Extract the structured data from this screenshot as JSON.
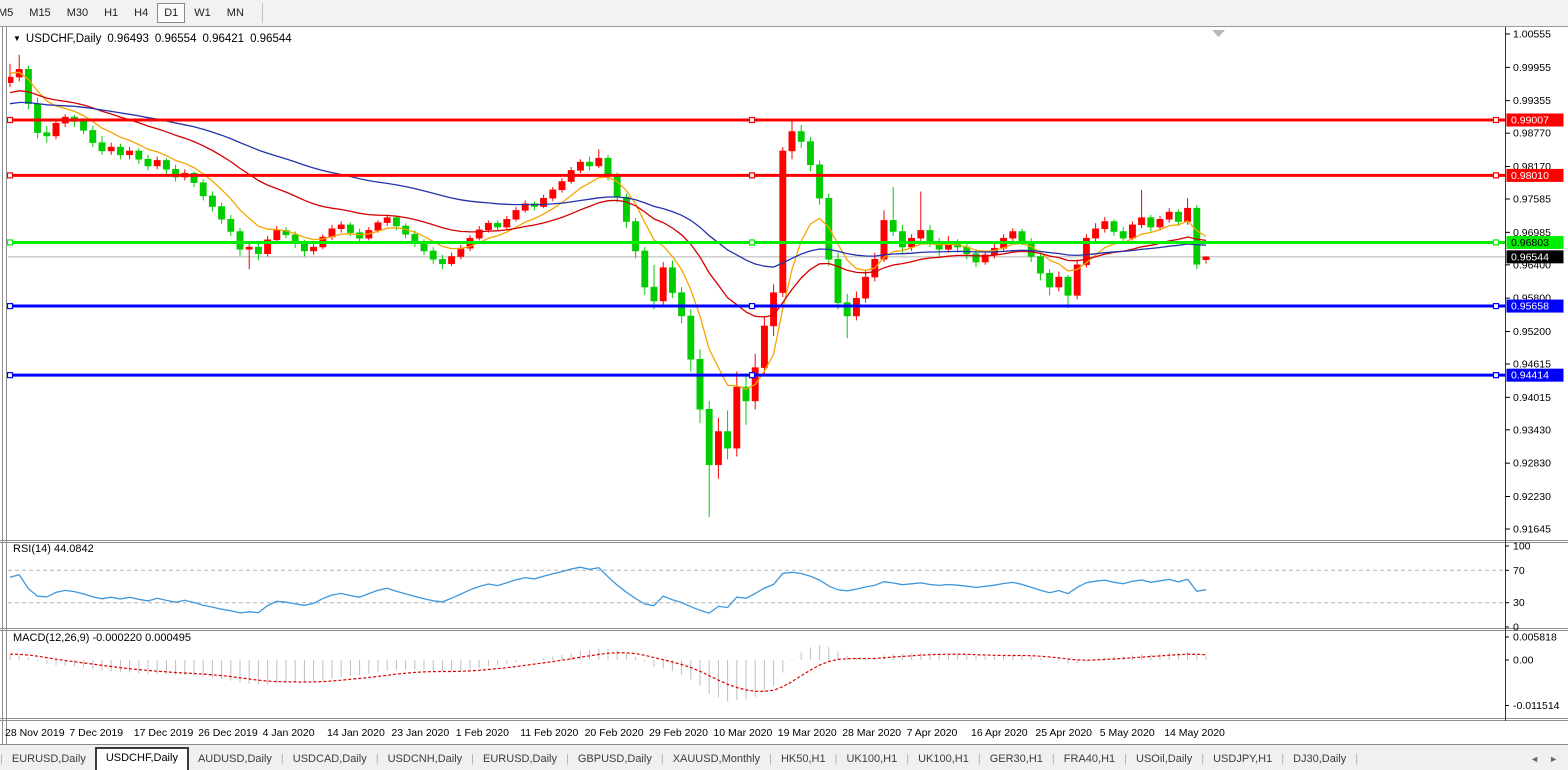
{
  "toolbar": {
    "timeframes": [
      "M5",
      "M15",
      "M30",
      "H1",
      "H4",
      "D1",
      "W1",
      "MN"
    ],
    "active": "D1"
  },
  "chart_header": {
    "dropdown_icon": "▼",
    "symbol": "USDCHF,Daily",
    "open": "0.96493",
    "high": "0.96554",
    "low": "0.96421",
    "close": "0.96544"
  },
  "price_axis": {
    "ticks": [
      "1.00555",
      "0.99955",
      "0.99355",
      "0.98770",
      "0.98170",
      "0.97585",
      "0.96985",
      "0.96400",
      "0.95800",
      "0.95200",
      "0.94615",
      "0.94015",
      "0.93430",
      "0.92830",
      "0.92230",
      "0.91645"
    ]
  },
  "hlines": [
    {
      "price": 0.99007,
      "label": "0.99007",
      "color": "#ff0000",
      "text_color": "#ffffff"
    },
    {
      "price": 0.9801,
      "label": "0.98010",
      "color": "#ff0000",
      "text_color": "#ffffff"
    },
    {
      "price": 0.96803,
      "label": "0.96803",
      "color": "#00ee00",
      "text_color": "#000000"
    },
    {
      "price": 0.95658,
      "label": "0.95658",
      "color": "#0000ff",
      "text_color": "#ffffff"
    },
    {
      "price": 0.94414,
      "label": "0.94414",
      "color": "#0000ff",
      "text_color": "#ffffff"
    }
  ],
  "current_price": {
    "price": 0.96544,
    "label": "0.96544",
    "box_color": "#000000",
    "text_color": "#ffffff",
    "line_color": "#c8c8c8"
  },
  "shift_marker_icon": "triangle-down",
  "chart_data": {
    "type": "candlestick",
    "symbol": "USDCHF",
    "timeframe": "Daily",
    "up_color": "#ff0000",
    "down_color": "#00cc00",
    "date_label_every": 7,
    "date_labels": [
      "28 Nov 2019",
      "7 Dec 2019",
      "17 Dec 2019",
      "26 Dec 2019",
      "4 Jan 2020",
      "14 Jan 2020",
      "23 Jan 2020",
      "1 Feb 2020",
      "11 Feb 2020",
      "20 Feb 2020",
      "29 Feb 2020",
      "10 Mar 2020",
      "19 Mar 2020",
      "28 Mar 2020",
      "7 Apr 2020",
      "16 Apr 2020",
      "25 Apr 2020",
      "5 May 2020",
      "14 May 2020"
    ],
    "candles": [
      [
        0.9968,
        1.0002,
        0.996,
        0.9978
      ],
      [
        0.9978,
        1.0018,
        0.997,
        0.9992
      ],
      [
        0.9992,
        0.9998,
        0.992,
        0.993
      ],
      [
        0.993,
        0.9941,
        0.9868,
        0.9878
      ],
      [
        0.9878,
        0.989,
        0.986,
        0.9872
      ],
      [
        0.9872,
        0.99,
        0.9866,
        0.9895
      ],
      [
        0.9895,
        0.9911,
        0.9888,
        0.9906
      ],
      [
        0.9906,
        0.991,
        0.9888,
        0.9898
      ],
      [
        0.9898,
        0.9905,
        0.9875,
        0.9882
      ],
      [
        0.9882,
        0.989,
        0.9852,
        0.986
      ],
      [
        0.986,
        0.9872,
        0.9838,
        0.9845
      ],
      [
        0.9845,
        0.986,
        0.9838,
        0.9852
      ],
      [
        0.9852,
        0.9858,
        0.983,
        0.9838
      ],
      [
        0.9838,
        0.9852,
        0.983,
        0.9845
      ],
      [
        0.9845,
        0.985,
        0.9822,
        0.983
      ],
      [
        0.983,
        0.9838,
        0.981,
        0.9818
      ],
      [
        0.9818,
        0.9835,
        0.9812,
        0.9828
      ],
      [
        0.9828,
        0.9832,
        0.9804,
        0.9812
      ],
      [
        0.9812,
        0.982,
        0.979,
        0.9798
      ],
      [
        0.9798,
        0.9812,
        0.9792,
        0.9805
      ],
      [
        0.9805,
        0.9808,
        0.978,
        0.9788
      ],
      [
        0.9788,
        0.9794,
        0.9756,
        0.9764
      ],
      [
        0.9764,
        0.9772,
        0.9736,
        0.9745
      ],
      [
        0.9745,
        0.9752,
        0.9714,
        0.9722
      ],
      [
        0.9722,
        0.973,
        0.9692,
        0.97
      ],
      [
        0.97,
        0.9706,
        0.9655,
        0.9668
      ],
      [
        0.9668,
        0.9682,
        0.9632,
        0.9672
      ],
      [
        0.9672,
        0.968,
        0.9648,
        0.966
      ],
      [
        0.966,
        0.9692,
        0.9655,
        0.9685
      ],
      [
        0.9685,
        0.971,
        0.968,
        0.9702
      ],
      [
        0.9702,
        0.9708,
        0.9688,
        0.9694
      ],
      [
        0.9694,
        0.97,
        0.967,
        0.9678
      ],
      [
        0.9678,
        0.9685,
        0.9655,
        0.9665
      ],
      [
        0.9665,
        0.968,
        0.9658,
        0.9672
      ],
      [
        0.9672,
        0.9695,
        0.9668,
        0.969
      ],
      [
        0.969,
        0.9712,
        0.9685,
        0.9705
      ],
      [
        0.9705,
        0.9718,
        0.9698,
        0.9712
      ],
      [
        0.9712,
        0.9716,
        0.9692,
        0.9698
      ],
      [
        0.9698,
        0.9705,
        0.968,
        0.9688
      ],
      [
        0.9688,
        0.9708,
        0.9684,
        0.9702
      ],
      [
        0.9702,
        0.972,
        0.9698,
        0.9716
      ],
      [
        0.9716,
        0.973,
        0.971,
        0.9725
      ],
      [
        0.9725,
        0.9728,
        0.9702,
        0.971
      ],
      [
        0.971,
        0.9715,
        0.9688,
        0.9695
      ],
      [
        0.9695,
        0.9702,
        0.9672,
        0.968
      ],
      [
        0.968,
        0.9686,
        0.9658,
        0.9665
      ],
      [
        0.9665,
        0.9672,
        0.9642,
        0.965
      ],
      [
        0.965,
        0.9658,
        0.9632,
        0.9642
      ],
      [
        0.9642,
        0.9662,
        0.9638,
        0.9655
      ],
      [
        0.9655,
        0.9676,
        0.965,
        0.967
      ],
      [
        0.967,
        0.9694,
        0.9665,
        0.9688
      ],
      [
        0.9688,
        0.971,
        0.9684,
        0.9703
      ],
      [
        0.9703,
        0.972,
        0.9698,
        0.9715
      ],
      [
        0.9715,
        0.972,
        0.97,
        0.9708
      ],
      [
        0.9708,
        0.9728,
        0.9704,
        0.9722
      ],
      [
        0.9722,
        0.9744,
        0.9718,
        0.9738
      ],
      [
        0.9738,
        0.9756,
        0.9734,
        0.975
      ],
      [
        0.975,
        0.9754,
        0.9738,
        0.9745
      ],
      [
        0.9745,
        0.9766,
        0.9742,
        0.976
      ],
      [
        0.976,
        0.978,
        0.9755,
        0.9775
      ],
      [
        0.9775,
        0.9796,
        0.977,
        0.979
      ],
      [
        0.979,
        0.9816,
        0.9786,
        0.981
      ],
      [
        0.981,
        0.983,
        0.9805,
        0.9825
      ],
      [
        0.9825,
        0.9835,
        0.981,
        0.9818
      ],
      [
        0.9818,
        0.9848,
        0.9814,
        0.9832
      ],
      [
        0.9832,
        0.9838,
        0.9792,
        0.98
      ],
      [
        0.98,
        0.9806,
        0.9752,
        0.9762
      ],
      [
        0.9762,
        0.9768,
        0.9706,
        0.9718
      ],
      [
        0.9718,
        0.9724,
        0.9652,
        0.9665
      ],
      [
        0.9665,
        0.9672,
        0.9586,
        0.96
      ],
      [
        0.96,
        0.964,
        0.956,
        0.9575
      ],
      [
        0.9575,
        0.9645,
        0.9565,
        0.9635
      ],
      [
        0.9635,
        0.9648,
        0.958,
        0.959
      ],
      [
        0.959,
        0.96,
        0.9535,
        0.9548
      ],
      [
        0.9548,
        0.956,
        0.9448,
        0.947
      ],
      [
        0.947,
        0.9488,
        0.9355,
        0.938
      ],
      [
        0.938,
        0.9395,
        0.9186,
        0.928
      ],
      [
        0.928,
        0.9365,
        0.9255,
        0.934
      ],
      [
        0.934,
        0.9378,
        0.929,
        0.931
      ],
      [
        0.931,
        0.9448,
        0.9295,
        0.942
      ],
      [
        0.942,
        0.9445,
        0.9352,
        0.9395
      ],
      [
        0.9395,
        0.948,
        0.938,
        0.9455
      ],
      [
        0.9455,
        0.9548,
        0.944,
        0.953
      ],
      [
        0.953,
        0.9605,
        0.9512,
        0.959
      ],
      [
        0.959,
        0.9852,
        0.9582,
        0.9845
      ],
      [
        0.9845,
        0.9901,
        0.983,
        0.988
      ],
      [
        0.988,
        0.9892,
        0.985,
        0.9862
      ],
      [
        0.9862,
        0.987,
        0.9808,
        0.982
      ],
      [
        0.982,
        0.9828,
        0.9748,
        0.976
      ],
      [
        0.976,
        0.9768,
        0.9638,
        0.965
      ],
      [
        0.965,
        0.9662,
        0.956,
        0.9572
      ],
      [
        0.9572,
        0.9588,
        0.9508,
        0.9548
      ],
      [
        0.9548,
        0.9592,
        0.954,
        0.958
      ],
      [
        0.958,
        0.963,
        0.9572,
        0.9618
      ],
      [
        0.9618,
        0.9662,
        0.961,
        0.965
      ],
      [
        0.965,
        0.9738,
        0.9645,
        0.972
      ],
      [
        0.972,
        0.978,
        0.9692,
        0.97
      ],
      [
        0.97,
        0.9712,
        0.966,
        0.9672
      ],
      [
        0.9672,
        0.9695,
        0.9665,
        0.9688
      ],
      [
        0.9688,
        0.9772,
        0.9682,
        0.9702
      ],
      [
        0.9702,
        0.9712,
        0.9672,
        0.968
      ],
      [
        0.968,
        0.9688,
        0.9655,
        0.9668
      ],
      [
        0.9668,
        0.9692,
        0.9662,
        0.968
      ],
      [
        0.968,
        0.9686,
        0.9662,
        0.9672
      ],
      [
        0.9672,
        0.968,
        0.965,
        0.966
      ],
      [
        0.966,
        0.9668,
        0.9636,
        0.9645
      ],
      [
        0.9645,
        0.9665,
        0.964,
        0.9658
      ],
      [
        0.9658,
        0.9678,
        0.9652,
        0.967
      ],
      [
        0.967,
        0.9695,
        0.9665,
        0.9688
      ],
      [
        0.9688,
        0.9706,
        0.9682,
        0.97
      ],
      [
        0.97,
        0.9705,
        0.9675,
        0.9682
      ],
      [
        0.9682,
        0.9688,
        0.9645,
        0.9655
      ],
      [
        0.9655,
        0.9662,
        0.9612,
        0.9625
      ],
      [
        0.9625,
        0.9632,
        0.9585,
        0.96
      ],
      [
        0.96,
        0.9628,
        0.9592,
        0.9618
      ],
      [
        0.9618,
        0.9622,
        0.9562,
        0.9585
      ],
      [
        0.9585,
        0.965,
        0.9578,
        0.964
      ],
      [
        0.964,
        0.9695,
        0.9635,
        0.9688
      ],
      [
        0.9688,
        0.9715,
        0.968,
        0.9705
      ],
      [
        0.9705,
        0.9726,
        0.9698,
        0.9718
      ],
      [
        0.9718,
        0.9722,
        0.9692,
        0.97
      ],
      [
        0.97,
        0.9708,
        0.968,
        0.9688
      ],
      [
        0.9688,
        0.9718,
        0.9684,
        0.9712
      ],
      [
        0.9712,
        0.9775,
        0.9706,
        0.9725
      ],
      [
        0.9725,
        0.973,
        0.97,
        0.9708
      ],
      [
        0.9708,
        0.9728,
        0.9702,
        0.9722
      ],
      [
        0.9722,
        0.9742,
        0.9716,
        0.9735
      ],
      [
        0.9735,
        0.974,
        0.971,
        0.9718
      ],
      [
        0.9718,
        0.976,
        0.9712,
        0.9742
      ],
      [
        0.9742,
        0.9748,
        0.9632,
        0.9641
      ],
      [
        0.96493,
        0.96554,
        0.96421,
        0.96544
      ]
    ]
  },
  "moving_averages": [
    {
      "name": "ma-fast",
      "period": 8,
      "color": "#f5a500",
      "seed": 0.9985
    },
    {
      "name": "ma-mid",
      "period": 25,
      "color": "#d40000",
      "seed": 0.995
    },
    {
      "name": "ma-slow",
      "period": 55,
      "color": "#2233aa",
      "seed": 0.993
    }
  ],
  "indicators": {
    "rsi": {
      "label": "RSI(14) 44.0842",
      "period": 14,
      "value": 44.0842,
      "ticks": [
        "100",
        "70",
        "30",
        "0"
      ],
      "tick_values": [
        100,
        70,
        30,
        0
      ],
      "levels": [
        70,
        30
      ],
      "line_color": "#3d97dd"
    },
    "macd": {
      "label": "MACD(12,26,9) -0.000220 0.000495",
      "fast": 12,
      "slow": 26,
      "signal": 9,
      "macd_value": -0.00022,
      "signal_value": 0.000495,
      "ticks": [
        "0.005818",
        "0.00",
        "-0.011514"
      ],
      "tick_values": [
        0.005818,
        0,
        -0.011514
      ],
      "hist_color": "#bdbdbd",
      "signal_color": "#e00000"
    }
  },
  "tabs": {
    "items": [
      "EURUSD,Daily",
      "USDCHF,Daily",
      "AUDUSD,Daily",
      "USDCAD,Daily",
      "USDCNH,Daily",
      "EURUSD,Daily",
      "GBPUSD,Daily",
      "XAUUSD,Monthly",
      "HK50,H1",
      "UK100,H1",
      "UK100,H1",
      "GER30,H1",
      "FRA40,H1",
      "USOil,Daily",
      "USDJPY,H1",
      "DJ30,Daily"
    ],
    "active_index": 1,
    "scroll_left_icon": "◄",
    "scroll_right_icon": "►"
  }
}
